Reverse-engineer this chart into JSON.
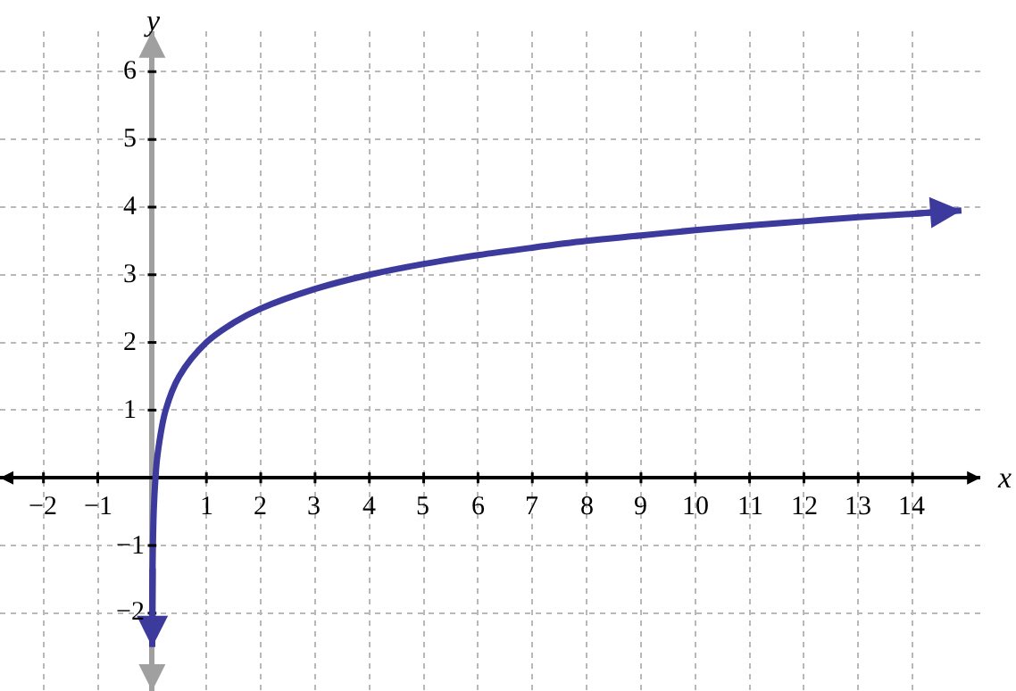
{
  "chart_data": {
    "type": "line",
    "xlabel": "x",
    "ylabel": "y",
    "x": [
      0.002,
      0.01,
      0.03,
      0.0625,
      0.1,
      0.25,
      0.5,
      1,
      1.5,
      2,
      3,
      4,
      5,
      6,
      7,
      8,
      9,
      10,
      11,
      12,
      13,
      14,
      14.9
    ],
    "series": [
      {
        "color": "#3d3a9e",
        "values": [
          -2.5,
          -1.3,
          -0.5,
          0,
          0.34,
          1,
          1.5,
          2,
          2.29,
          2.5,
          2.79,
          3,
          3.16,
          3.29,
          3.4,
          3.5,
          3.58,
          3.66,
          3.73,
          3.79,
          3.85,
          3.9,
          3.95
        ]
      }
    ],
    "xlim": [
      -2.8,
      15.25
    ],
    "ylim": [
      -3.15,
      6.6
    ],
    "xticks": [
      -2,
      -1,
      1,
      2,
      3,
      4,
      5,
      6,
      7,
      8,
      9,
      10,
      11,
      12,
      13,
      14
    ],
    "yticks": [
      -2,
      -1,
      1,
      2,
      3,
      4,
      5,
      6
    ],
    "grid": true,
    "legend": false,
    "marker": "none",
    "line_style": "solid"
  }
}
